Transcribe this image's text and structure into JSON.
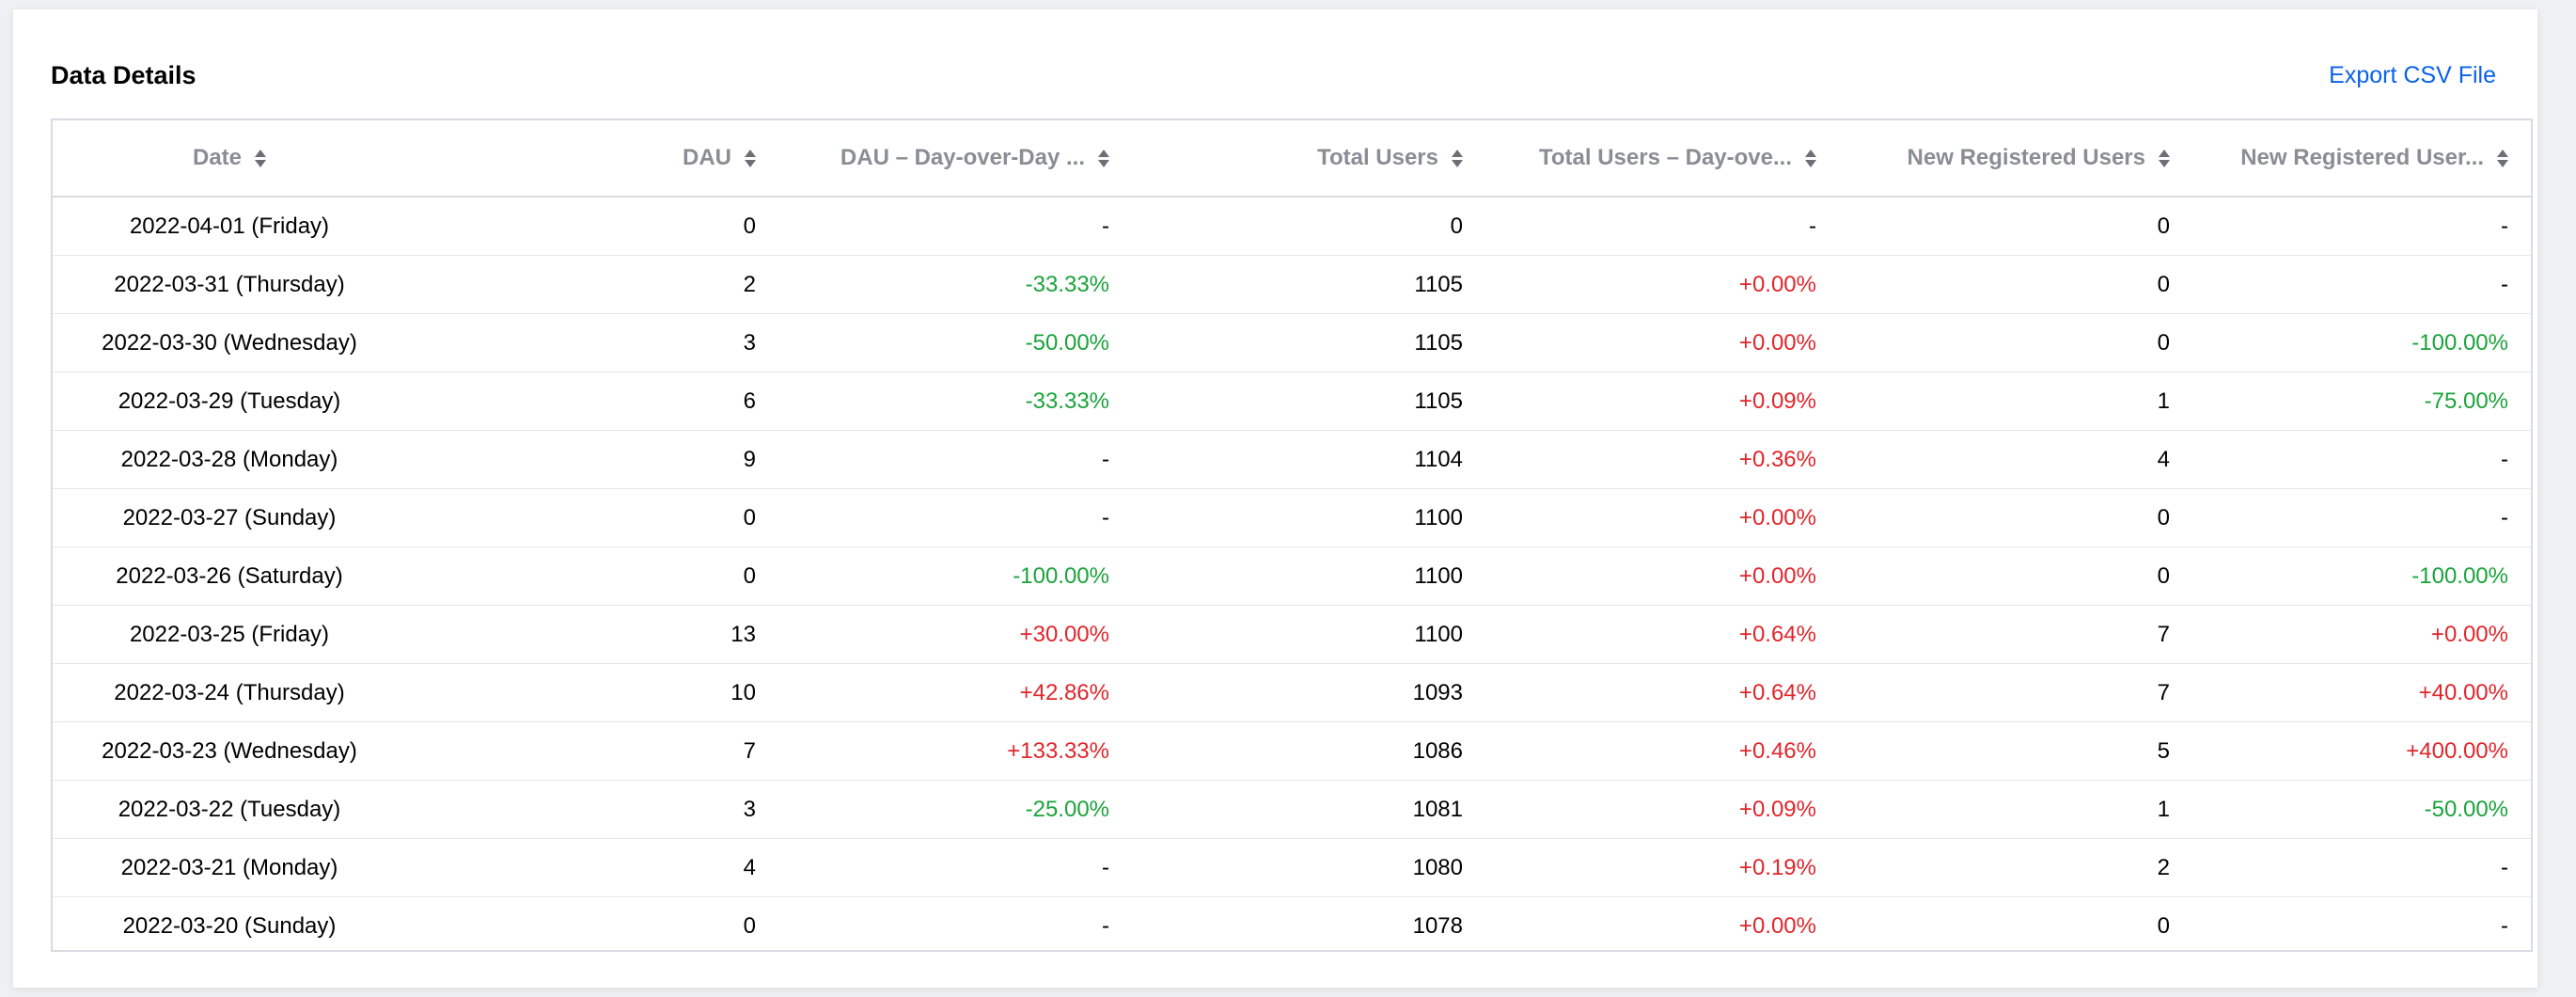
{
  "header": {
    "title": "Data Details",
    "export_label": "Export CSV File"
  },
  "columns": [
    {
      "key": "date",
      "label": "Date"
    },
    {
      "key": "dau",
      "label": "DAU"
    },
    {
      "key": "dau_dod",
      "label": "DAU – Day-over-Day ..."
    },
    {
      "key": "total",
      "label": "Total Users"
    },
    {
      "key": "total_dod",
      "label": "Total Users – Day-ove..."
    },
    {
      "key": "new",
      "label": "New Registered Users"
    },
    {
      "key": "new_dod",
      "label": "New Registered User..."
    }
  ],
  "rows": [
    {
      "date": "2022-04-01 (Friday)",
      "dau": "0",
      "dau_dod": "-",
      "total": "0",
      "total_dod": "-",
      "new": "0",
      "new_dod": "-"
    },
    {
      "date": "2022-03-31 (Thursday)",
      "dau": "2",
      "dau_dod": "-33.33%",
      "total": "1105",
      "total_dod": "+0.00%",
      "new": "0",
      "new_dod": "-"
    },
    {
      "date": "2022-03-30 (Wednesday)",
      "dau": "3",
      "dau_dod": "-50.00%",
      "total": "1105",
      "total_dod": "+0.00%",
      "new": "0",
      "new_dod": "-100.00%"
    },
    {
      "date": "2022-03-29 (Tuesday)",
      "dau": "6",
      "dau_dod": "-33.33%",
      "total": "1105",
      "total_dod": "+0.09%",
      "new": "1",
      "new_dod": "-75.00%"
    },
    {
      "date": "2022-03-28 (Monday)",
      "dau": "9",
      "dau_dod": "-",
      "total": "1104",
      "total_dod": "+0.36%",
      "new": "4",
      "new_dod": "-"
    },
    {
      "date": "2022-03-27 (Sunday)",
      "dau": "0",
      "dau_dod": "-",
      "total": "1100",
      "total_dod": "+0.00%",
      "new": "0",
      "new_dod": "-"
    },
    {
      "date": "2022-03-26 (Saturday)",
      "dau": "0",
      "dau_dod": "-100.00%",
      "total": "1100",
      "total_dod": "+0.00%",
      "new": "0",
      "new_dod": "-100.00%"
    },
    {
      "date": "2022-03-25 (Friday)",
      "dau": "13",
      "dau_dod": "+30.00%",
      "total": "1100",
      "total_dod": "+0.64%",
      "new": "7",
      "new_dod": "+0.00%"
    },
    {
      "date": "2022-03-24 (Thursday)",
      "dau": "10",
      "dau_dod": "+42.86%",
      "total": "1093",
      "total_dod": "+0.64%",
      "new": "7",
      "new_dod": "+40.00%"
    },
    {
      "date": "2022-03-23 (Wednesday)",
      "dau": "7",
      "dau_dod": "+133.33%",
      "total": "1086",
      "total_dod": "+0.46%",
      "new": "5",
      "new_dod": "+400.00%"
    },
    {
      "date": "2022-03-22 (Tuesday)",
      "dau": "3",
      "dau_dod": "-25.00%",
      "total": "1081",
      "total_dod": "+0.09%",
      "new": "1",
      "new_dod": "-50.00%"
    },
    {
      "date": "2022-03-21 (Monday)",
      "dau": "4",
      "dau_dod": "-",
      "total": "1080",
      "total_dod": "+0.19%",
      "new": "2",
      "new_dod": "-"
    },
    {
      "date": "2022-03-20 (Sunday)",
      "dau": "0",
      "dau_dod": "-",
      "total": "1078",
      "total_dod": "+0.00%",
      "new": "0",
      "new_dod": "-"
    }
  ],
  "colors": {
    "positive": "#e0252b",
    "negative": "#1aa33a",
    "link": "#0a62e8",
    "header_text": "#8a8d94"
  },
  "icons": {
    "sort": "sort-icon"
  }
}
